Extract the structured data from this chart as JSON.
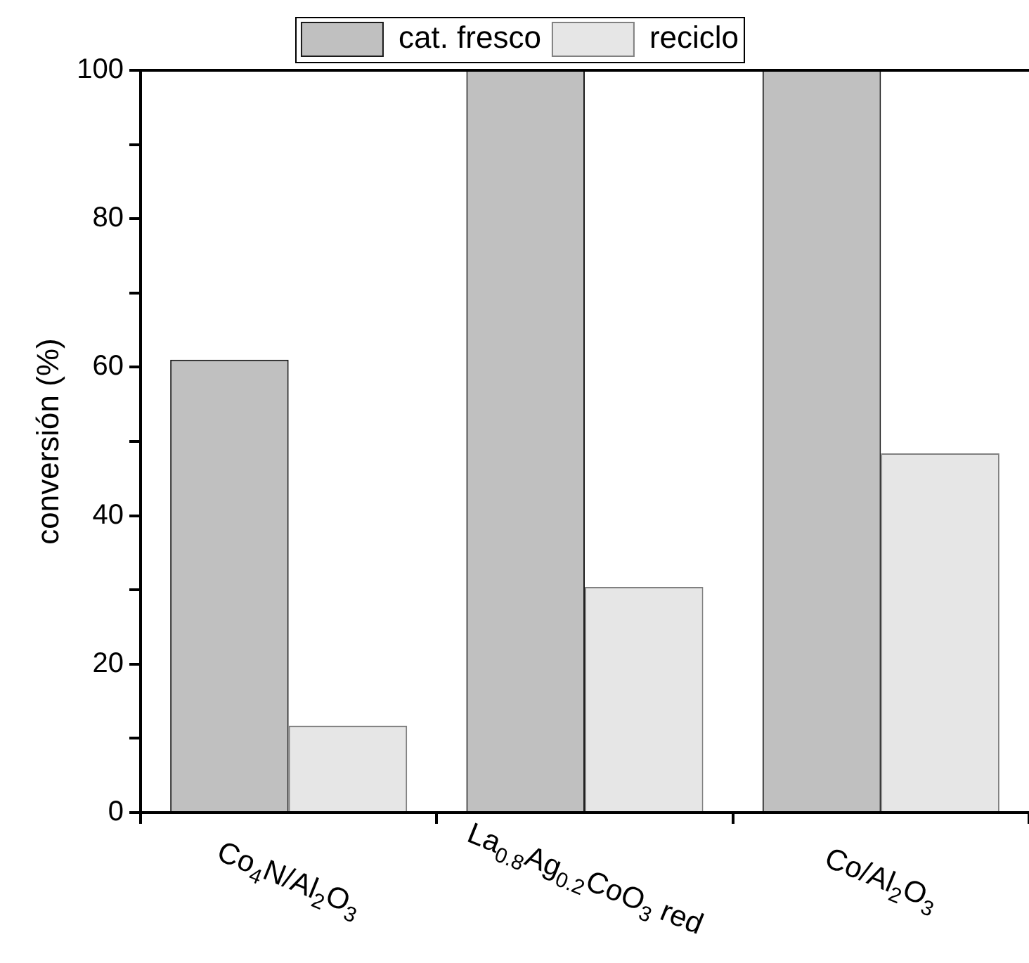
{
  "chart_data": {
    "type": "bar",
    "ylabel": "conversión (%)",
    "categories": [
      "Co$_{4}$N/Al$_{2}$O$_{3}$",
      "La$_{0.8}$Ag$_{0.2}$CoO$_{3}$ red",
      "Co/Al$_{2}$O$_{3}$"
    ],
    "series": [
      {
        "name": "cat. fresco",
        "color": "#c0c0c0",
        "values": [
          61,
          100,
          100
        ]
      },
      {
        "name": "reciclo",
        "color": "#e6e6e6",
        "values": [
          11.7,
          30.4,
          48.4
        ]
      }
    ],
    "ylim": [
      0,
      100
    ],
    "yticks": [
      0,
      {
        "value": 10,
        "label": null
      },
      20,
      {
        "value": 30,
        "label": null
      },
      40,
      {
        "value": 50,
        "label": null
      },
      60,
      {
        "value": 70,
        "label": null
      },
      80,
      {
        "value": 90,
        "label": null
      },
      100
    ],
    "grid": false,
    "legend": "top"
  }
}
